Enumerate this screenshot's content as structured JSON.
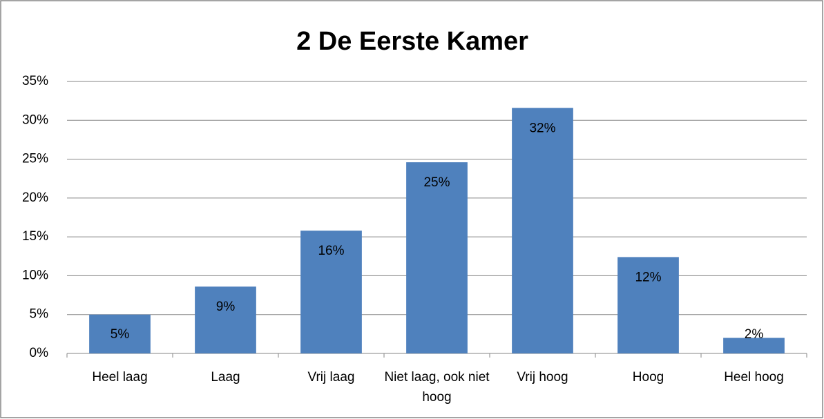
{
  "chart_data": {
    "type": "bar",
    "title": "2 De Eerste Kamer",
    "categories": [
      "Heel laag",
      "Laag",
      "Vrij laag",
      "Niet laag, ook niet hoog",
      "Vrij hoog",
      "Hoog",
      "Heel hoog"
    ],
    "values": [
      5.0,
      8.6,
      15.8,
      24.6,
      31.6,
      12.4,
      2.0
    ],
    "value_labels": [
      "5%",
      "9%",
      "16%",
      "25%",
      "32%",
      "12%",
      "2%"
    ],
    "color": "#4f81bd",
    "ylim": [
      0,
      35
    ],
    "yticks": [
      {
        "value": 0,
        "label": "0%"
      },
      {
        "value": 5,
        "label": "5%"
      },
      {
        "value": 10,
        "label": "10%"
      },
      {
        "value": 15,
        "label": "15%"
      },
      {
        "value": 20,
        "label": "20%"
      },
      {
        "value": 25,
        "label": "25%"
      },
      {
        "value": 30,
        "label": "30%"
      },
      {
        "value": 35,
        "label": "35%"
      }
    ],
    "grid": true
  }
}
